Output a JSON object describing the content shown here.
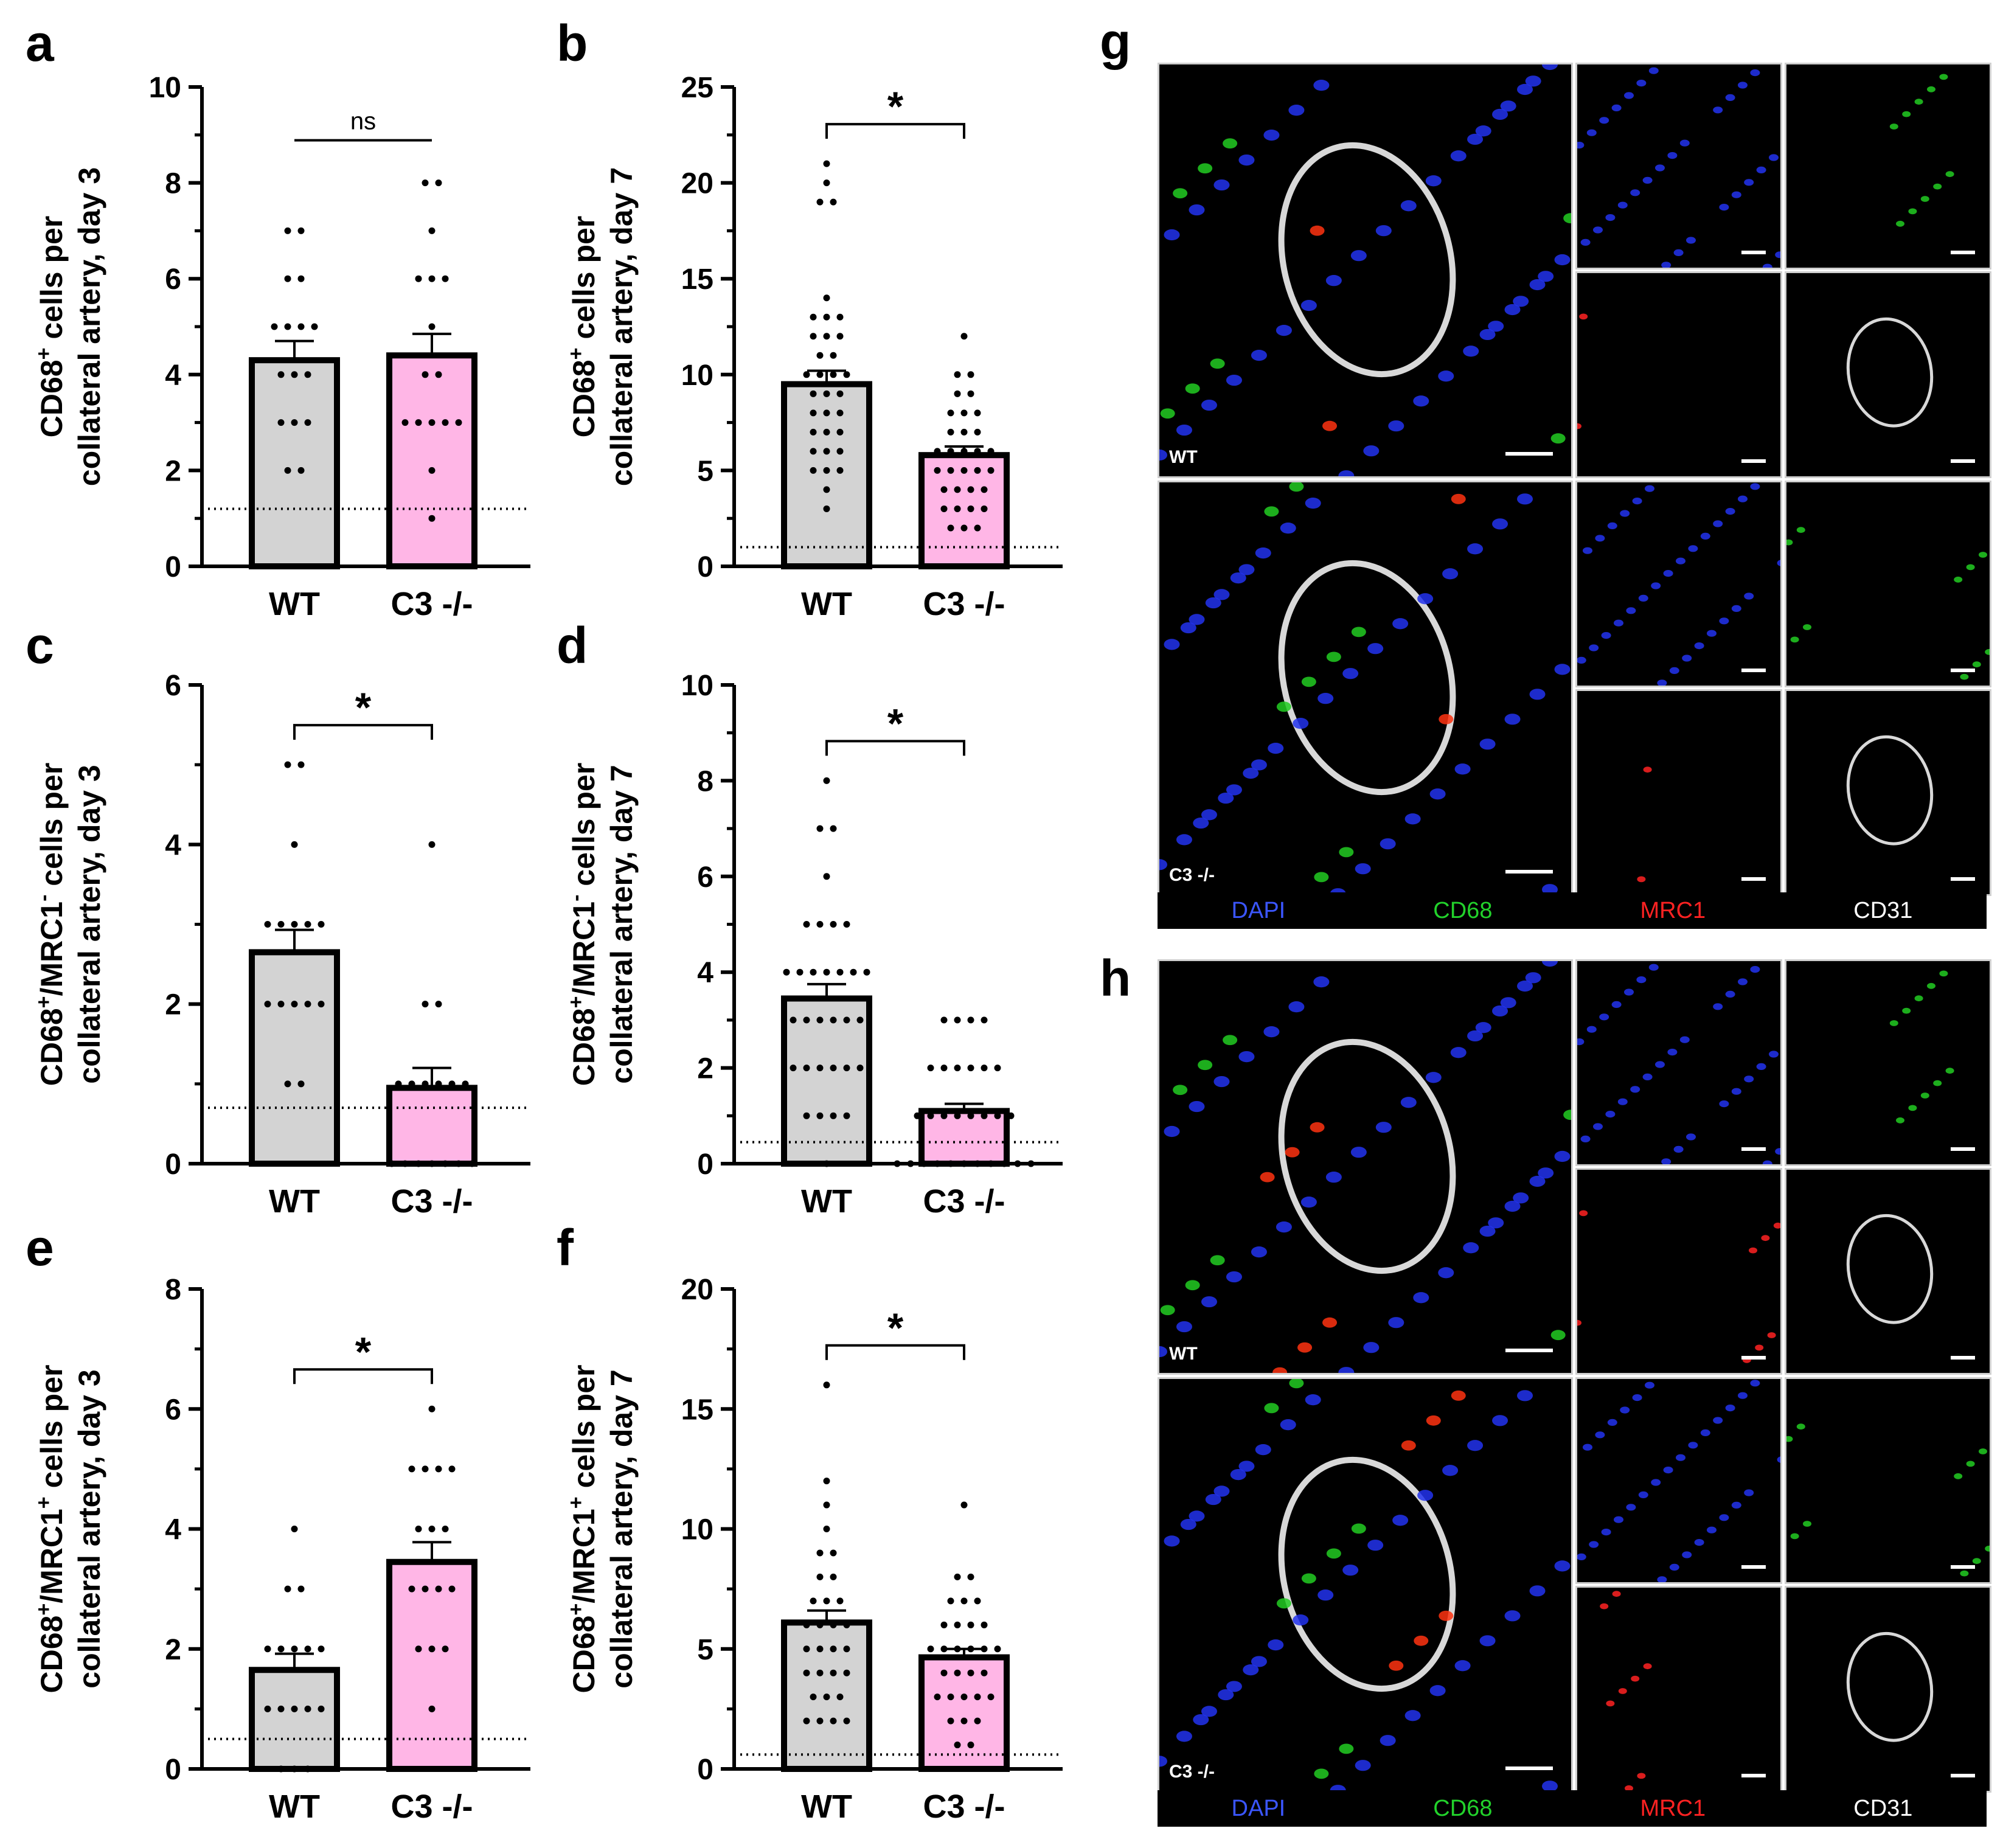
{
  "panels_bar": [
    {
      "letter": "a",
      "chart_data": {
        "type": "bar",
        "categories": [
          "WT",
          "C3 -/-"
        ],
        "ylabel_line1": "CD68+ cells per",
        "ylabel_line2": "collateral artery, day 3",
        "ylim": [
          0,
          10
        ],
        "yticks": [
          0,
          2,
          4,
          6,
          8,
          10
        ],
        "means": [
          4.3,
          4.4
        ],
        "sem": [
          0.4,
          0.45
        ],
        "threshold": 1.2,
        "significance": "ns",
        "points": [
          [
            7,
            7,
            6,
            6,
            5,
            5,
            5,
            5,
            4,
            4,
            4,
            3,
            3,
            3,
            2,
            2
          ],
          [
            8,
            8,
            7,
            6,
            6,
            6,
            5,
            4,
            4,
            3,
            3,
            3,
            3,
            3,
            2,
            1
          ]
        ],
        "colors": [
          "#d3d3d3",
          "#ffb6e6"
        ]
      }
    },
    {
      "letter": "b",
      "chart_data": {
        "type": "bar",
        "categories": [
          "WT",
          "C3 -/-"
        ],
        "ylabel_line1": "CD68+ cells per",
        "ylabel_line2": "collateral artery, day 7",
        "ylim": [
          0,
          25
        ],
        "yticks": [
          0,
          5,
          10,
          15,
          20,
          25
        ],
        "means": [
          9.5,
          5.8
        ],
        "sem": [
          0.7,
          0.45
        ],
        "threshold": 1.0,
        "significance": "*",
        "points": [
          [
            21,
            20,
            19,
            19,
            14,
            13,
            13,
            13,
            12,
            12,
            12,
            11,
            11,
            10,
            10,
            10,
            10,
            9,
            9,
            9,
            8,
            8,
            8,
            7,
            7,
            7,
            6,
            6,
            6,
            5,
            5,
            5,
            4,
            3
          ],
          [
            12,
            10,
            10,
            9,
            9,
            8,
            8,
            8,
            7,
            7,
            7,
            6,
            6,
            6,
            6,
            6,
            5,
            5,
            5,
            5,
            5,
            4,
            4,
            4,
            4,
            3,
            3,
            3,
            3,
            2,
            2,
            2
          ]
        ],
        "colors": [
          "#d3d3d3",
          "#ffb6e6"
        ]
      }
    },
    {
      "letter": "c",
      "chart_data": {
        "type": "bar",
        "categories": [
          "WT",
          "C3 -/-"
        ],
        "ylabel_line1": "CD68+/MRC1- cells per",
        "ylabel_line2": "collateral artery, day 3",
        "ylim": [
          0,
          6
        ],
        "yticks": [
          0,
          2,
          4,
          6
        ],
        "means": [
          2.65,
          0.95
        ],
        "sem": [
          0.28,
          0.25
        ],
        "threshold": 0.7,
        "significance": "*",
        "points": [
          [
            5,
            5,
            4,
            3,
            3,
            3,
            3,
            3,
            2,
            2,
            2,
            2,
            2,
            1,
            1
          ],
          [
            4,
            2,
            2,
            1,
            1,
            1,
            1,
            1,
            1,
            0,
            0,
            0,
            0,
            0,
            0,
            0
          ]
        ],
        "colors": [
          "#d3d3d3",
          "#ffb6e6"
        ]
      }
    },
    {
      "letter": "d",
      "chart_data": {
        "type": "bar",
        "categories": [
          "WT",
          "C3 -/-"
        ],
        "ylabel_line1": "CD68+/MRC1- cells per",
        "ylabel_line2": "collateral artery, day 7",
        "ylim": [
          0,
          10
        ],
        "yticks": [
          0,
          2,
          4,
          6,
          8,
          10
        ],
        "means": [
          3.45,
          1.1
        ],
        "sem": [
          0.3,
          0.15
        ],
        "threshold": 0.45,
        "significance": "*",
        "points": [
          [
            8,
            7,
            7,
            6,
            5,
            5,
            5,
            5,
            4,
            4,
            4,
            4,
            4,
            4,
            4,
            3,
            3,
            3,
            3,
            3,
            3,
            2,
            2,
            2,
            2,
            2,
            2,
            1,
            1,
            1,
            1,
            0
          ],
          [
            3,
            3,
            3,
            3,
            2,
            2,
            2,
            2,
            2,
            2,
            1,
            1,
            1,
            1,
            1,
            1,
            1,
            1,
            0,
            0,
            0,
            0,
            0,
            0,
            0,
            0,
            0,
            0,
            0
          ]
        ],
        "colors": [
          "#d3d3d3",
          "#ffb6e6"
        ]
      }
    },
    {
      "letter": "e",
      "chart_data": {
        "type": "bar",
        "categories": [
          "WT",
          "C3 -/-"
        ],
        "ylabel_line1": "CD68+/MRC1+ cells per",
        "ylabel_line2": "collateral artery, day 3",
        "ylim": [
          0,
          8
        ],
        "yticks": [
          0,
          2,
          4,
          6,
          8
        ],
        "means": [
          1.65,
          3.45
        ],
        "sem": [
          0.27,
          0.33
        ],
        "threshold": 0.5,
        "significance": "*",
        "points": [
          [
            4,
            3,
            3,
            2,
            2,
            2,
            2,
            2,
            1,
            1,
            1,
            1,
            1,
            0,
            0,
            0
          ],
          [
            6,
            5,
            5,
            5,
            5,
            4,
            4,
            4,
            3,
            3,
            3,
            3,
            2,
            2,
            2,
            1
          ]
        ],
        "colors": [
          "#d3d3d3",
          "#ffb6e6"
        ]
      }
    },
    {
      "letter": "f",
      "chart_data": {
        "type": "bar",
        "categories": [
          "WT",
          "C3 -/-"
        ],
        "ylabel_line1": "CD68+/MRC1+ cells per",
        "ylabel_line2": "collateral artery, day 7",
        "ylim": [
          0,
          20
        ],
        "yticks": [
          0,
          5,
          10,
          15,
          20
        ],
        "means": [
          6.1,
          4.65
        ],
        "sem": [
          0.5,
          0.35
        ],
        "threshold": 0.6,
        "significance": "*",
        "points": [
          [
            16,
            12,
            11,
            10,
            9,
            9,
            8,
            8,
            7,
            7,
            7,
            6,
            6,
            6,
            6,
            5,
            5,
            5,
            5,
            4,
            4,
            4,
            4,
            3,
            3,
            3,
            2,
            2,
            2,
            2
          ],
          [
            11,
            8,
            8,
            7,
            7,
            7,
            6,
            6,
            6,
            6,
            5,
            5,
            5,
            5,
            5,
            5,
            4,
            4,
            4,
            4,
            3,
            3,
            3,
            3,
            3,
            2,
            2,
            2,
            1,
            1
          ]
        ],
        "colors": [
          "#d3d3d3",
          "#ffb6e6"
        ]
      }
    }
  ],
  "microscopy": [
    {
      "letter": "g",
      "row_labels": [
        "WT",
        "C3 -/-"
      ]
    },
    {
      "letter": "h",
      "row_labels": [
        "WT",
        "C3 -/-"
      ]
    }
  ],
  "legend": {
    "items": [
      {
        "label": "DAPI",
        "color": "#3b56ff"
      },
      {
        "label": "CD68",
        "color": "#22d22b"
      },
      {
        "label": "MRC1",
        "color": "#ff2222"
      },
      {
        "label": "CD31",
        "color": "#ffffff"
      }
    ]
  }
}
